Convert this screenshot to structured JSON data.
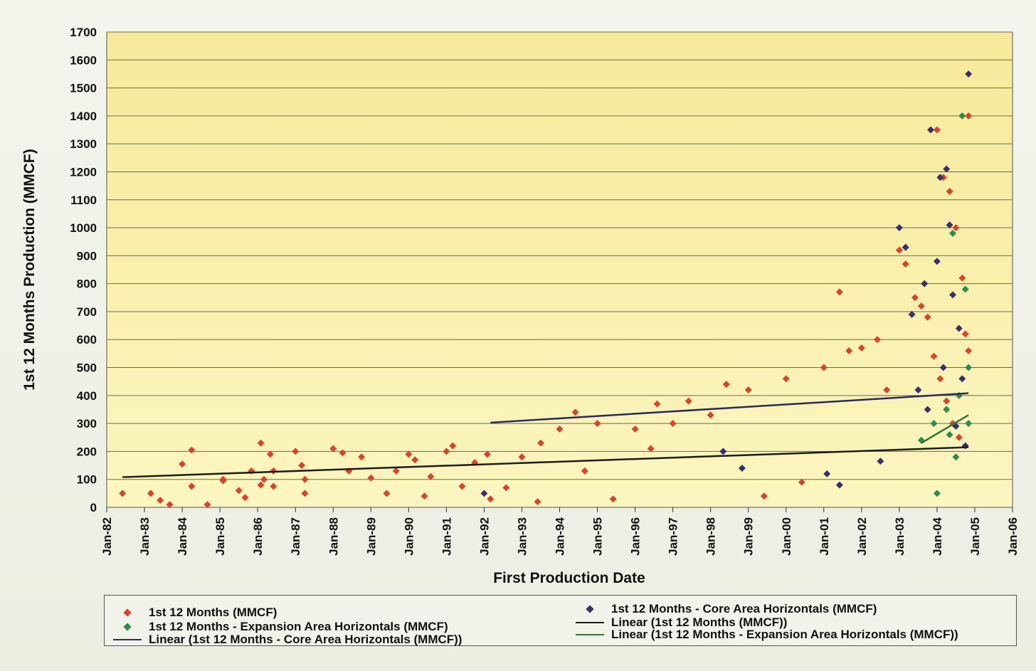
{
  "chart_data": {
    "type": "scatter",
    "xlabel": "First Production Date",
    "ylabel": "1st 12 Months Production (MMCF)",
    "ylim": [
      0,
      1700
    ],
    "yticks": [
      0,
      100,
      200,
      300,
      400,
      500,
      600,
      700,
      800,
      900,
      1000,
      1100,
      1200,
      1300,
      1400,
      1500,
      1600,
      1700
    ],
    "xlim": [
      "1982-01",
      "2006-01"
    ],
    "xticks": [
      "Jan-82",
      "Jan-83",
      "Jan-84",
      "Jan-85",
      "Jan-86",
      "Jan-87",
      "Jan-88",
      "Jan-89",
      "Jan-90",
      "Jan-91",
      "Jan-92",
      "Jan-93",
      "Jan-94",
      "Jan-95",
      "Jan-96",
      "Jan-97",
      "Jan-98",
      "Jan-99",
      "Jan-00",
      "Jan-01",
      "Jan-02",
      "Jan-03",
      "Jan-04",
      "Jan-05",
      "Jan-06"
    ],
    "grid": "horizontal",
    "legend_position": "bottom",
    "series": [
      {
        "name": "1st 12 Months (MMCF)",
        "marker": "diamond",
        "color": "#d8432b",
        "points": [
          [
            "1982-06",
            50
          ],
          [
            "1983-03",
            50
          ],
          [
            "1983-06",
            25
          ],
          [
            "1983-09",
            10
          ],
          [
            "1984-01",
            155
          ],
          [
            "1984-04",
            205
          ],
          [
            "1984-04",
            75
          ],
          [
            "1984-09",
            10
          ],
          [
            "1985-02",
            100
          ],
          [
            "1985-02",
            95
          ],
          [
            "1985-07",
            60
          ],
          [
            "1985-09",
            35
          ],
          [
            "1985-11",
            130
          ],
          [
            "1986-02",
            230
          ],
          [
            "1986-02",
            80
          ],
          [
            "1986-03",
            100
          ],
          [
            "1986-05",
            190
          ],
          [
            "1986-06",
            130
          ],
          [
            "1986-06",
            75
          ],
          [
            "1987-01",
            200
          ],
          [
            "1987-03",
            150
          ],
          [
            "1987-04",
            100
          ],
          [
            "1987-04",
            50
          ],
          [
            "1988-01",
            210
          ],
          [
            "1988-04",
            195
          ],
          [
            "1988-06",
            130
          ],
          [
            "1988-10",
            180
          ],
          [
            "1989-01",
            105
          ],
          [
            "1989-06",
            50
          ],
          [
            "1989-09",
            130
          ],
          [
            "1990-01",
            190
          ],
          [
            "1990-03",
            170
          ],
          [
            "1990-06",
            40
          ],
          [
            "1990-08",
            110
          ],
          [
            "1991-01",
            200
          ],
          [
            "1991-03",
            220
          ],
          [
            "1991-06",
            75
          ],
          [
            "1991-10",
            160
          ],
          [
            "1992-02",
            190
          ],
          [
            "1992-03",
            30
          ],
          [
            "1992-08",
            70
          ],
          [
            "1993-01",
            180
          ],
          [
            "1993-06",
            20
          ],
          [
            "1993-07",
            230
          ],
          [
            "1994-01",
            280
          ],
          [
            "1994-06",
            340
          ],
          [
            "1994-09",
            130
          ],
          [
            "1995-01",
            300
          ],
          [
            "1995-06",
            30
          ],
          [
            "1996-01",
            280
          ],
          [
            "1996-06",
            210
          ],
          [
            "1996-08",
            370
          ],
          [
            "1997-01",
            300
          ],
          [
            "1997-06",
            380
          ],
          [
            "1998-01",
            330
          ],
          [
            "1998-06",
            440
          ],
          [
            "1999-01",
            420
          ],
          [
            "1999-06",
            40
          ],
          [
            "2000-01",
            460
          ],
          [
            "2000-06",
            90
          ],
          [
            "2001-01",
            500
          ],
          [
            "2001-06",
            770
          ],
          [
            "2001-09",
            560
          ],
          [
            "2002-01",
            570
          ],
          [
            "2002-06",
            600
          ],
          [
            "2002-09",
            420
          ],
          [
            "2003-01",
            920
          ],
          [
            "2003-03",
            870
          ],
          [
            "2003-06",
            750
          ],
          [
            "2003-08",
            720
          ],
          [
            "2003-10",
            680
          ],
          [
            "2004-01",
            1350
          ],
          [
            "2004-03",
            1180
          ],
          [
            "2004-05",
            1130
          ],
          [
            "2004-07",
            1000
          ],
          [
            "2004-09",
            820
          ],
          [
            "2004-11",
            1400
          ],
          [
            "2003-12",
            540
          ],
          [
            "2004-02",
            460
          ],
          [
            "2004-04",
            380
          ],
          [
            "2004-06",
            300
          ],
          [
            "2004-08",
            250
          ],
          [
            "2004-10",
            620
          ],
          [
            "2004-11",
            560
          ]
        ]
      },
      {
        "name": "1st 12 Months - Core Area Horizontals (MMCF)",
        "marker": "diamond",
        "color": "#3b2f6b",
        "points": [
          [
            "1992-01",
            50
          ],
          [
            "1998-05",
            200
          ],
          [
            "1998-11",
            140
          ],
          [
            "2001-02",
            120
          ],
          [
            "2001-06",
            80
          ],
          [
            "2002-07",
            165
          ],
          [
            "2003-01",
            1000
          ],
          [
            "2003-03",
            930
          ],
          [
            "2003-05",
            690
          ],
          [
            "2003-09",
            800
          ],
          [
            "2003-11",
            1350
          ],
          [
            "2004-01",
            880
          ],
          [
            "2004-02",
            1180
          ],
          [
            "2004-04",
            1210
          ],
          [
            "2004-05",
            1010
          ],
          [
            "2004-06",
            760
          ],
          [
            "2004-08",
            640
          ],
          [
            "2004-11",
            1550
          ],
          [
            "2003-07",
            420
          ],
          [
            "2003-10",
            350
          ],
          [
            "2004-03",
            500
          ],
          [
            "2004-07",
            290
          ],
          [
            "2004-09",
            460
          ],
          [
            "2004-10",
            220
          ]
        ]
      },
      {
        "name": "1st 12 Months - Expansion Area Horizontals (MMCF)",
        "marker": "diamond",
        "color": "#2e8a4f",
        "points": [
          [
            "2003-08",
            240
          ],
          [
            "2003-12",
            300
          ],
          [
            "2004-01",
            50
          ],
          [
            "2004-04",
            350
          ],
          [
            "2004-06",
            980
          ],
          [
            "2004-08",
            400
          ],
          [
            "2004-09",
            1400
          ],
          [
            "2004-10",
            780
          ],
          [
            "2004-11",
            300
          ],
          [
            "2004-11",
            500
          ],
          [
            "2004-05",
            260
          ],
          [
            "2004-07",
            180
          ]
        ]
      },
      {
        "name": "Linear (1st 12 Months (MMCF))",
        "marker": "line",
        "color": "#1c1c1c",
        "points": [
          [
            "1982-06",
            108
          ],
          [
            "2004-11",
            215
          ]
        ]
      },
      {
        "name": "Linear (1st 12 Months - Expansion Area Horizontals (MMCF))",
        "marker": "line",
        "color": "#2e7a3c",
        "points": [
          [
            "2003-08",
            230
          ],
          [
            "2004-11",
            330
          ]
        ]
      },
      {
        "name": "Linear (1st 12 Months - Core Area Horizontals (MMCF))",
        "marker": "line",
        "color": "#2a2a5e",
        "points": [
          [
            "1992-03",
            303
          ],
          [
            "2004-11",
            408
          ]
        ]
      }
    ]
  },
  "legend": {
    "items": [
      {
        "label": "1st 12 Months (MMCF)",
        "kind": "diamond",
        "color": "#d8432b"
      },
      {
        "label": "1st 12 Months - Expansion Area Horizontals (MMCF)",
        "kind": "diamond",
        "color": "#2e8a4f"
      },
      {
        "label": "Linear (1st 12 Months - Core Area Horizontals (MMCF))",
        "kind": "line",
        "color": "#2a2a5e"
      },
      {
        "label": "1st 12 Months - Core Area Horizontals (MMCF)",
        "kind": "diamond",
        "color": "#3b2f6b"
      },
      {
        "label": "Linear (1st 12 Months (MMCF))",
        "kind": "line",
        "color": "#1c1c1c"
      },
      {
        "label": "Linear (1st 12 Months - Expansion Area Horizontals (MMCF))",
        "kind": "line",
        "color": "#2e7a3c"
      }
    ]
  },
  "colors": {
    "plot_background_top": "#f7e99a",
    "plot_background_bottom": "#fbf6c0",
    "gridline": "#6b6b55"
  }
}
